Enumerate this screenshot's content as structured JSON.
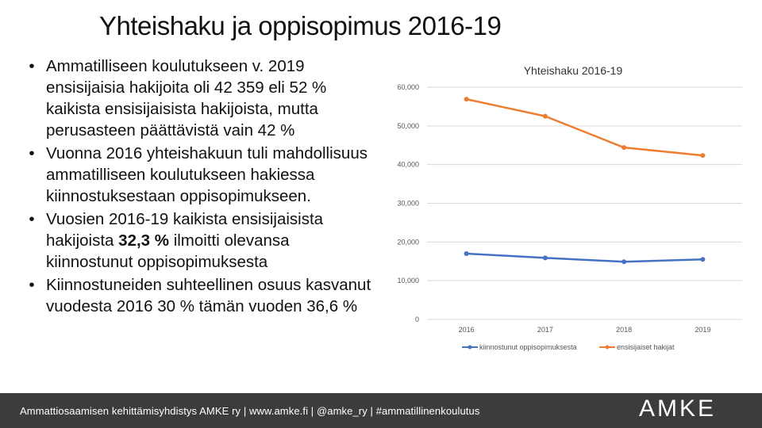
{
  "slide": {
    "title": "Yhteishaku ja oppisopimus 2016-19",
    "bullet_symbol": "•",
    "bullets": [
      {
        "parts": [
          "Ammatilliseen koulutukseen v. 2019 ensisijaisia hakijoita oli 42 359 eli 52 % kaikista ensisijaisista hakijoista, mutta perusasteen päättävistä vain 42 %"
        ]
      },
      {
        "parts": [
          "Vuonna 2016 yhteishakuun tuli mahdollisuus ammatilliseen koulutukseen hakiessa kiinnostuksestaan oppisopimukseen."
        ]
      },
      {
        "parts": [
          "Vuosien 2016-19 kaikista ensisijaisista hakijoista ",
          "32,3 %",
          " ilmoitti olevansa kiinnostunut oppisopimuksesta"
        ]
      },
      {
        "parts": [
          "Kiinnostuneiden suhteellinen osuus kasvanut vuodesta 2016 30 % tämän vuoden 36,6 %"
        ]
      }
    ]
  },
  "footer": {
    "text": "Ammattiosaamisen kehittämisyhdistys AMKE ry  |  www.amke.fi  |  @amke_ry  |  #ammatillinenkoulutus",
    "logo": "AMKE",
    "background": "#3c3c3c"
  },
  "chart_data": {
    "type": "line",
    "title": "Yhteishaku 2016-19",
    "categories": [
      "2016",
      "2017",
      "2018",
      "2019"
    ],
    "ylim": [
      0,
      60000
    ],
    "yticks": [
      0,
      10000,
      20000,
      30000,
      40000,
      50000,
      60000
    ],
    "ytick_labels": [
      "0",
      "10,000",
      "20,000",
      "30,000",
      "40,000",
      "50,000",
      "60,000"
    ],
    "grid": true,
    "legend_position": "bottom",
    "series": [
      {
        "name": "kiinnostunut oppisopimuksesta",
        "color": "#4472c4",
        "values": [
          17000,
          15900,
          14900,
          15500
        ]
      },
      {
        "name": "ensisijaiset hakijat",
        "color": "#ed7d31",
        "values": [
          56900,
          52500,
          44400,
          42359
        ]
      }
    ]
  }
}
